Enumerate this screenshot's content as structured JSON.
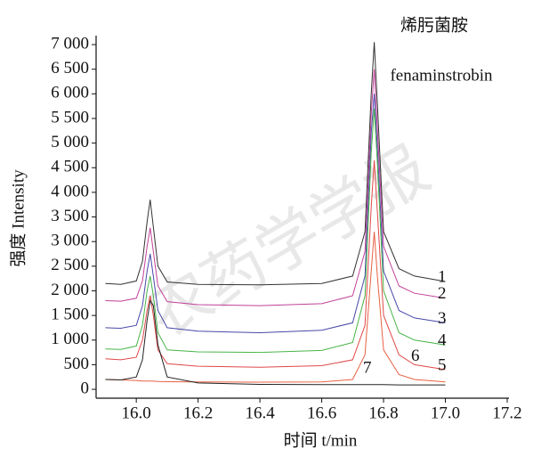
{
  "chart_data": {
    "type": "line",
    "title": "烯肟菌胺",
    "subtitle": "fenaminstrobin",
    "x_label": "时间 t/min",
    "y_label": "强度 Intensity",
    "watermark": "农药学学报",
    "x": [
      15.9,
      15.95,
      16.0,
      16.02,
      16.035,
      16.045,
      16.055,
      16.07,
      16.1,
      16.2,
      16.4,
      16.6,
      16.7,
      16.74,
      16.76,
      16.77,
      16.78,
      16.8,
      16.85,
      16.9,
      17.0
    ],
    "series": [
      {
        "name": "1",
        "color": "#333333",
        "values": [
          2150,
          2130,
          2200,
          2600,
          3400,
          3850,
          3300,
          2500,
          2180,
          2130,
          2120,
          2150,
          2300,
          3200,
          6000,
          7050,
          5800,
          3200,
          2450,
          2300,
          2190
        ]
      },
      {
        "name": "2",
        "color": "#c04098",
        "values": [
          1800,
          1790,
          1850,
          2200,
          2900,
          3280,
          2800,
          2100,
          1780,
          1720,
          1700,
          1740,
          1900,
          2800,
          5600,
          6500,
          5300,
          2900,
          2100,
          1950,
          1850
        ]
      },
      {
        "name": "3",
        "color": "#4848a8",
        "values": [
          1250,
          1240,
          1300,
          1700,
          2400,
          2750,
          2300,
          1600,
          1250,
          1180,
          1150,
          1200,
          1350,
          2300,
          5200,
          6000,
          4900,
          2400,
          1600,
          1450,
          1350
        ]
      },
      {
        "name": "4",
        "color": "#48b448",
        "values": [
          820,
          810,
          880,
          1300,
          2000,
          2300,
          1900,
          1150,
          800,
          760,
          750,
          790,
          950,
          1900,
          4800,
          5700,
          4600,
          2000,
          1150,
          1000,
          900
        ]
      },
      {
        "name": "5",
        "color": "#e04848",
        "values": [
          620,
          600,
          650,
          1000,
          1600,
          1900,
          1500,
          800,
          520,
          470,
          450,
          480,
          600,
          1300,
          3700,
          4650,
          3600,
          1500,
          700,
          500,
          400
        ]
      },
      {
        "name": "6",
        "color": "#e86040",
        "values": [
          200,
          190,
          180,
          170,
          170,
          170,
          165,
          160,
          155,
          150,
          145,
          150,
          200,
          700,
          2400,
          3200,
          2300,
          800,
          300,
          200,
          150
        ]
      },
      {
        "name": "7",
        "color": "#222222",
        "values": [
          200,
          190,
          250,
          600,
          1400,
          1800,
          1700,
          900,
          250,
          130,
          100,
          95,
          95,
          95,
          95,
          95,
          95,
          95,
          90,
          90,
          90
        ]
      }
    ],
    "xlim": [
      15.87,
      17.2
    ],
    "xticks": [
      {
        "value": 16.0,
        "label": "16.0"
      },
      {
        "value": 16.2,
        "label": "16.2"
      },
      {
        "value": 16.4,
        "label": "16.4"
      },
      {
        "value": 16.6,
        "label": "16.6"
      },
      {
        "value": 16.8,
        "label": "16.8"
      },
      {
        "value": 17.0,
        "label": "17.0"
      },
      {
        "value": 17.2,
        "label": "17.2"
      }
    ],
    "ylim": [
      -180,
      7200
    ],
    "yticks": [
      0,
      500,
      {
        "value": 1000,
        "label": "1 000"
      },
      {
        "value": 1500,
        "label": "1 500"
      },
      {
        "value": 2000,
        "label": "2 000"
      },
      {
        "value": 2500,
        "label": "2 500"
      },
      {
        "value": 3000,
        "label": "3 000"
      },
      {
        "value": 3500,
        "label": "3 500"
      },
      {
        "value": 4000,
        "label": "4 000"
      },
      {
        "value": 4500,
        "label": "4 500"
      },
      {
        "value": 5000,
        "label": "5 000"
      },
      {
        "value": 5500,
        "label": "5 500"
      },
      {
        "value": 6000,
        "label": "6 000"
      },
      {
        "value": 6500,
        "label": "6 500"
      },
      {
        "value": 7000,
        "label": "7 000"
      }
    ]
  }
}
